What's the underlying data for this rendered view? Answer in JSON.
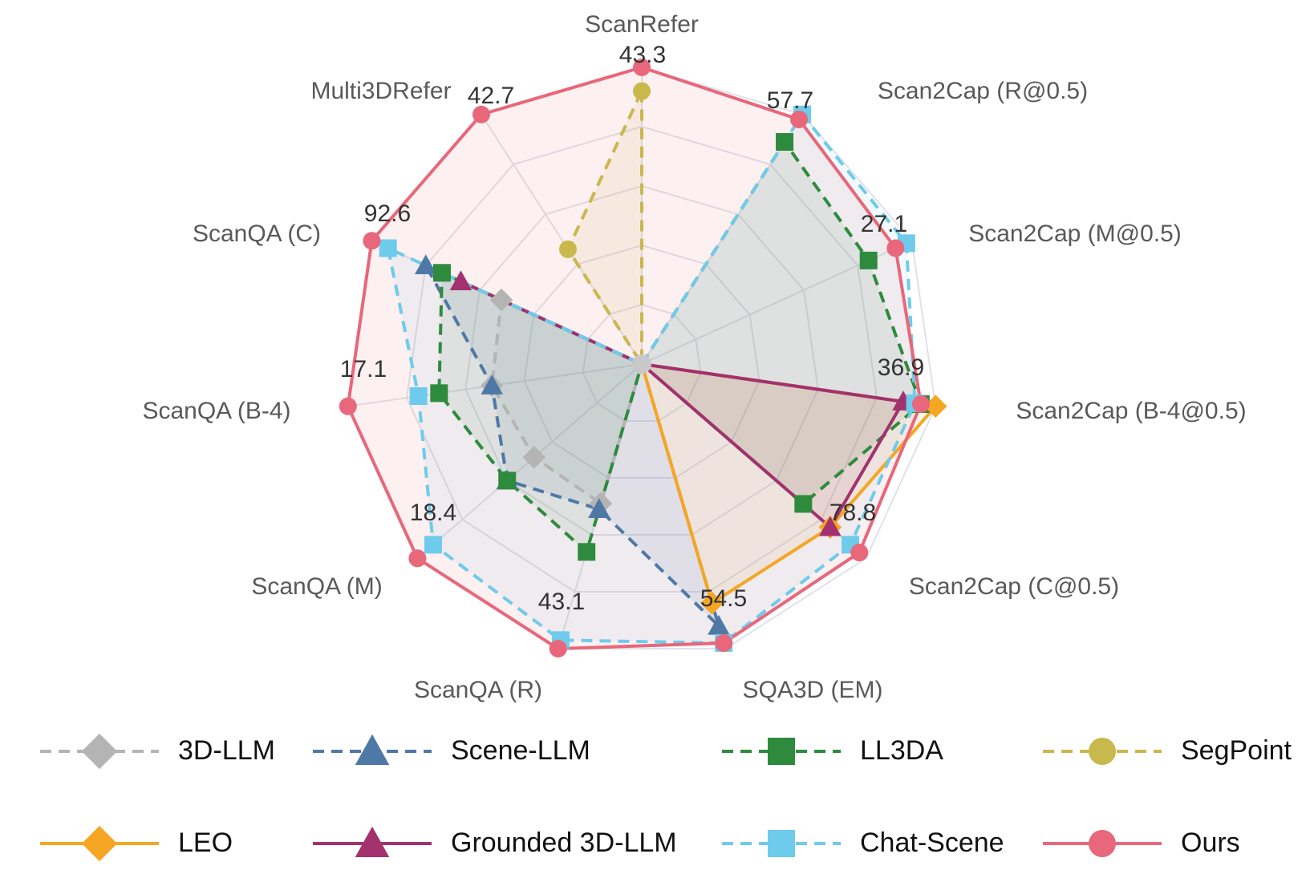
{
  "chart_data": {
    "type": "radar",
    "axes": [
      "ScanRefer",
      "Scan2Cap (R@0.5)",
      "Scan2Cap (M@0.5)",
      "Scan2Cap (B-4@0.5)",
      "Scan2Cap (C@0.5)",
      "SQA3D (EM)",
      "ScanQA (R)",
      "ScanQA (M)",
      "ScanQA (B-4)",
      "ScanQA (C)",
      "Multi3DRefer"
    ],
    "value_labels": [
      "43.3",
      "57.7",
      "27.1",
      "36.9",
      "78.8",
      "54.5",
      "43.1",
      "18.4",
      "17.1",
      "92.6",
      "42.7"
    ],
    "radial_range": [
      0,
      1
    ],
    "grid_levels": 5,
    "series": [
      {
        "name": "3D-LLM",
        "color": "#b4b4b4",
        "dash": true,
        "marker": "diamond",
        "values": [
          0,
          0,
          0,
          0,
          0,
          0,
          0.49,
          0.48,
          0.51,
          0.52,
          0
        ]
      },
      {
        "name": "Scene-LLM",
        "color": "#4e79a7",
        "dash": true,
        "marker": "triangle",
        "values": [
          0,
          0,
          0,
          0,
          0,
          0.92,
          0.51,
          0.6,
          0.51,
          0.8,
          0
        ]
      },
      {
        "name": "LL3DA",
        "color": "#2e8b3d",
        "dash": true,
        "marker": "square",
        "values": [
          0,
          0.89,
          0.84,
          0.95,
          0.72,
          0,
          0.66,
          0.6,
          0.69,
          0.74,
          0
        ]
      },
      {
        "name": "SegPoint",
        "color": "#c9b84c",
        "dash": true,
        "marker": "circle",
        "values": [
          0.92,
          0,
          0,
          0,
          0,
          0,
          0,
          0,
          0,
          0,
          0.46
        ]
      },
      {
        "name": "LEO",
        "color": "#f5a623",
        "dash": false,
        "marker": "diamond",
        "values": [
          0,
          0,
          0,
          1.0,
          0.84,
          0.84,
          0,
          0,
          0,
          0,
          0
        ]
      },
      {
        "name": "Grounded 3D-LLM",
        "color": "#a2316e",
        "dash": false,
        "marker": "triangle",
        "values": [
          0,
          0,
          0,
          0.89,
          0.84,
          0,
          0,
          0,
          0,
          0.67,
          0
        ]
      },
      {
        "name": "Chat-Scene",
        "color": "#6ecbeb",
        "dash": true,
        "marker": "square",
        "values": [
          0,
          1.0,
          0.98,
          0.93,
          0.93,
          0.98,
          0.97,
          0.93,
          0.76,
          0.94,
          0
        ]
      },
      {
        "name": "Ours",
        "color": "#e8677a",
        "dash": false,
        "marker": "circle",
        "values": [
          1.0,
          0.98,
          0.94,
          0.95,
          0.97,
          0.98,
          1.0,
          1.0,
          1.0,
          1.0,
          1.0
        ]
      }
    ],
    "legend_position": "bottom"
  },
  "legend": {
    "items": [
      "3D-LLM",
      "Scene-LLM",
      "LL3DA",
      "SegPoint",
      "LEO",
      "Grounded 3D-LLM",
      "Chat-Scene",
      "Ours"
    ]
  }
}
